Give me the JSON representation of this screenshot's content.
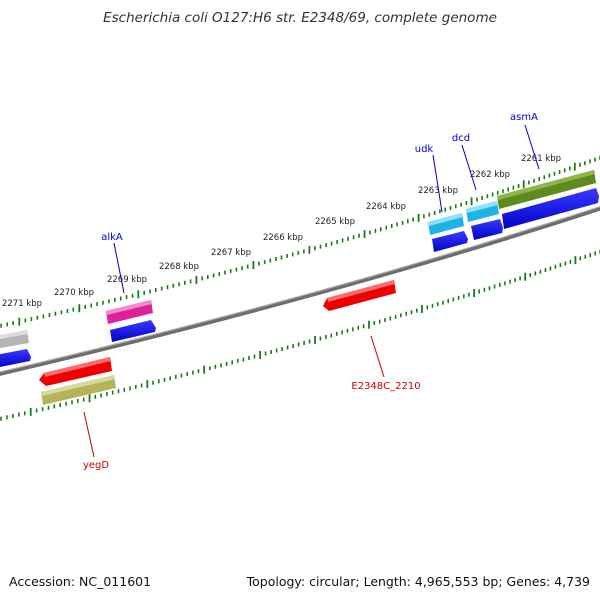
{
  "title": "Escherichia coli O127:H6 str. E2348/69, complete genome",
  "footer": {
    "accession": "Accession: NC_011601",
    "summary": "Topology: circular; Length: 4,965,553 bp; Genes: 4,739"
  },
  "colors": {
    "backbone": "#7a7a7a",
    "ticks": "#1a7a1a",
    "tick_label": "#222222",
    "gene_label_forward": "#0000cc",
    "gene_label_reverse": "#cc0000",
    "cds": "#0000ee"
  },
  "ruler": {
    "labels": [
      "2261 kbp",
      "2262 kbp",
      "2263 kbp",
      "2264 kbp",
      "2265 kbp",
      "2266 kbp",
      "2267 kbp",
      "2268 kbp",
      "2269 kbp",
      "2270 kbp",
      "2271 kbp"
    ]
  },
  "gene_labels": [
    {
      "name": "asmA",
      "strand": "forward"
    },
    {
      "name": "dcd",
      "strand": "forward"
    },
    {
      "name": "udk",
      "strand": "forward"
    },
    {
      "name": "alkA",
      "strand": "forward"
    },
    {
      "name": "E2348C_2210",
      "strand": "reverse"
    },
    {
      "name": "yegD",
      "strand": "reverse"
    }
  ]
}
